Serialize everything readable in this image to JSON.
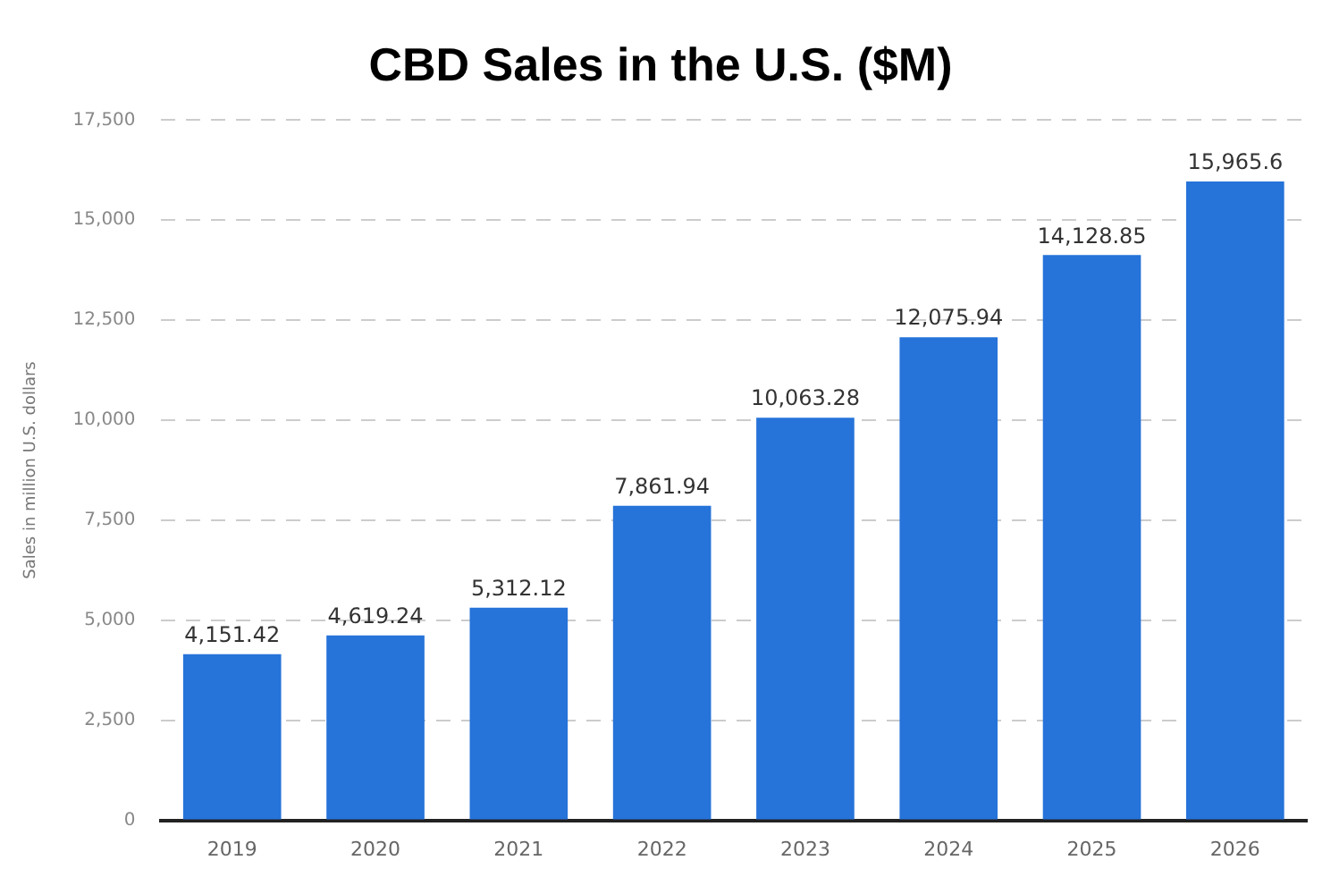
{
  "chart_data": {
    "type": "bar",
    "title": "CBD Sales in the U.S. ($M)",
    "ylabel": "Sales in million U.S. dollars",
    "categories": [
      "2019",
      "2020",
      "2021",
      "2022",
      "2023",
      "2024",
      "2025",
      "2026"
    ],
    "values": [
      4151.42,
      4619.24,
      5312.12,
      7861.94,
      10063.28,
      12075.94,
      14128.85,
      15965.6
    ],
    "value_labels": [
      "4,151.42",
      "4,619.24",
      "5,312.12",
      "7,861.94",
      "10,063.28",
      "12,075.94",
      "14,128.85",
      "15,965.6"
    ],
    "color": "#2673d9",
    "ylim": [
      0,
      17500
    ],
    "yticks": [
      {
        "value": 0,
        "label": "0"
      },
      {
        "value": 2500,
        "label": "2,500"
      },
      {
        "value": 5000,
        "label": "5,000"
      },
      {
        "value": 7500,
        "label": "7,500"
      },
      {
        "value": 10000,
        "label": "10,000"
      },
      {
        "value": 12500,
        "label": "12,500"
      },
      {
        "value": 15000,
        "label": "15,000"
      },
      {
        "value": 17500,
        "label": "17,500"
      }
    ],
    "grid": "y",
    "legend": false
  }
}
